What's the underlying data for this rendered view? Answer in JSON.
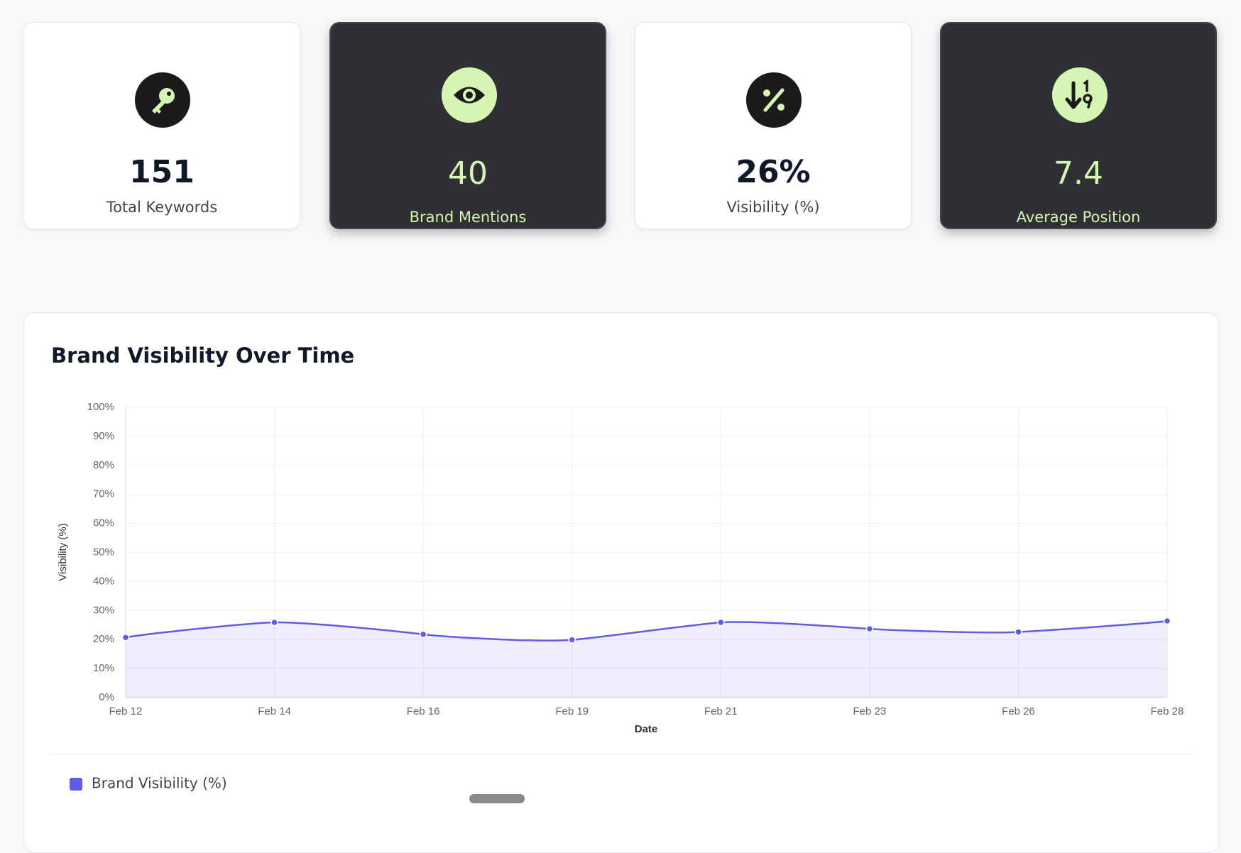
{
  "cards": [
    {
      "value": 151,
      "label": "Total Keywords"
    },
    {
      "value": 40,
      "label": "Brand Mentions"
    },
    {
      "value": "26%",
      "label": "Visibility (%)"
    },
    {
      "value": 7.4,
      "label": "Average Position"
    }
  ],
  "chart_data": {
    "type": "line",
    "title": "Brand Visibility Over Time",
    "x_label": "Date",
    "y_label": "Visibility (%)",
    "categories": [
      "Feb 12",
      "Feb 14",
      "Feb 16",
      "Feb 19",
      "Feb 21",
      "Feb 23",
      "Feb 26",
      "Feb 28"
    ],
    "series": [
      {
        "name": "Brand Visibility (%)",
        "color": "#5f5ce6",
        "values": [
          20.7,
          25.9,
          21.8,
          19.9,
          25.9,
          23.7,
          22.6,
          26.4
        ]
      }
    ],
    "ylim": [
      0,
      100
    ],
    "yticks": [
      {
        "value": 0,
        "label": "0%"
      },
      {
        "value": 10,
        "label": "10%"
      },
      {
        "value": 20,
        "label": "20%"
      },
      {
        "value": 30,
        "label": "30%"
      },
      {
        "value": 40,
        "label": "40%"
      },
      {
        "value": 50,
        "label": "50%"
      },
      {
        "value": 60,
        "label": "60%"
      },
      {
        "value": 70,
        "label": "70%"
      },
      {
        "value": 80,
        "label": "80%"
      },
      {
        "value": 90,
        "label": "90%"
      },
      {
        "value": 100,
        "label": "100%"
      }
    ],
    "grid": true,
    "area": true
  }
}
